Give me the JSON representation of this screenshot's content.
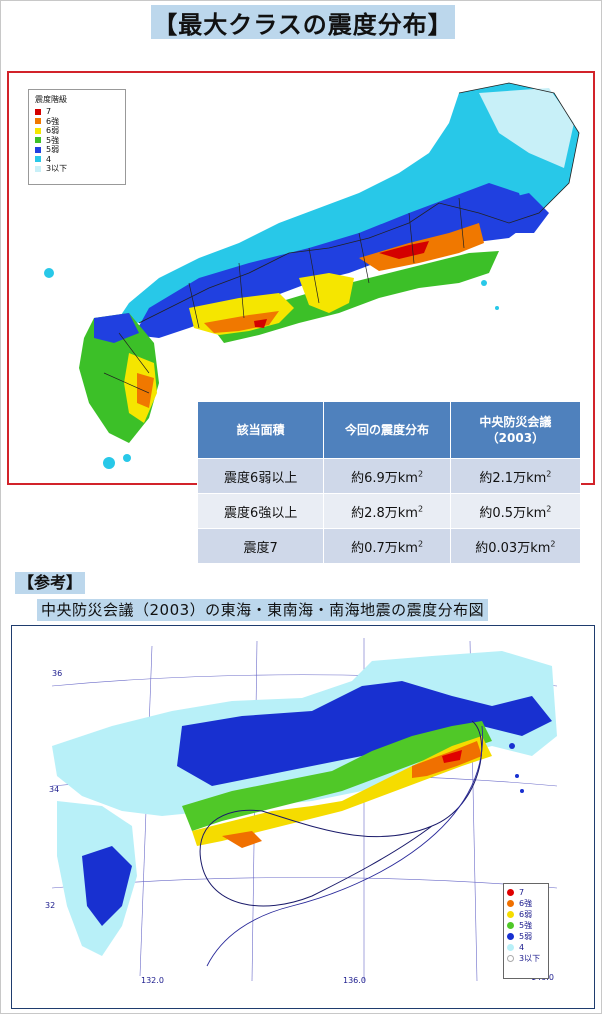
{
  "title": "【最大クラスの震度分布】",
  "map1": {
    "legend_title": "震度階級",
    "legend": [
      {
        "label": "7",
        "color": "#d40000"
      },
      {
        "label": "6強",
        "color": "#f07800"
      },
      {
        "label": "6弱",
        "color": "#f5e600"
      },
      {
        "label": "5強",
        "color": "#3cc028"
      },
      {
        "label": "5弱",
        "color": "#2040e0"
      },
      {
        "label": "4",
        "color": "#28c8e8"
      },
      {
        "label": "3以下",
        "color": "#c8f0f8"
      }
    ]
  },
  "table": {
    "headers": [
      "該当面積",
      "今回の震度分布",
      "中央防災会議",
      "（2003）"
    ],
    "rows": [
      {
        "label": "震度6弱以上",
        "current": "約6.9万km",
        "cabinet": "約2.1万km"
      },
      {
        "label": "震度6強以上",
        "current": "約2.8万km",
        "cabinet": "約0.5万km"
      },
      {
        "label": "震度7",
        "current": "約0.7万km",
        "cabinet": "約0.03万km"
      }
    ],
    "unit_sup": "2"
  },
  "reference_label": "【参考】",
  "reference_title": "中央防災会議（2003）の東海・東南海・南海地震の震度分布図",
  "map2": {
    "lat_labels": [
      "36",
      "34",
      "32"
    ],
    "lon_labels": [
      "132.0",
      "136.0",
      "140.0"
    ],
    "legend": [
      {
        "label": "7",
        "color": "#e00000"
      },
      {
        "label": "6強",
        "color": "#f07000"
      },
      {
        "label": "6弱",
        "color": "#f5dc00"
      },
      {
        "label": "5強",
        "color": "#50c828"
      },
      {
        "label": "5弱",
        "color": "#1830d0"
      },
      {
        "label": "4",
        "color": "#b8f0f8"
      },
      {
        "label": "3以下",
        "color": "#ffffff"
      }
    ]
  }
}
